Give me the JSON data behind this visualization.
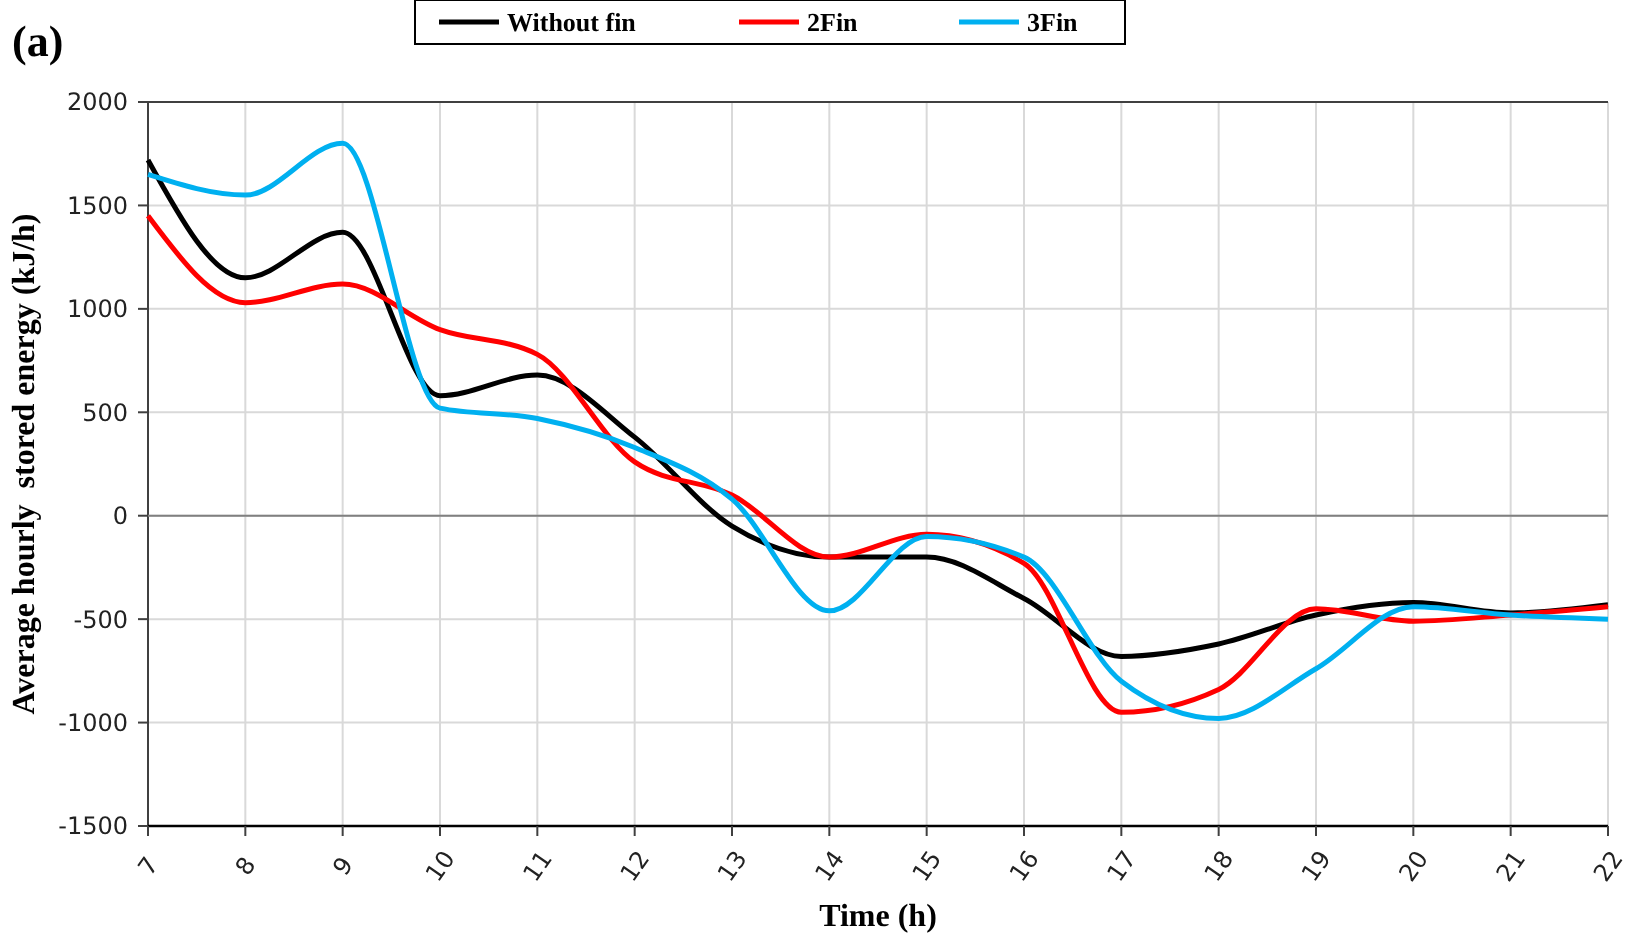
{
  "chart_data": {
    "type": "line",
    "title": "(a)",
    "xlabel": "Time (h)",
    "ylabel": "Average hourly  stored energy (kJ/h)",
    "x": [
      7,
      8,
      9,
      10,
      11,
      12,
      13,
      14,
      15,
      16,
      17,
      18,
      19,
      20,
      21,
      22
    ],
    "series": [
      {
        "name": "Without fin",
        "color": "#000000",
        "values": [
          1720,
          1150,
          1370,
          580,
          680,
          380,
          -50,
          -200,
          -200,
          -400,
          -680,
          -620,
          -480,
          -420,
          -470,
          -430
        ]
      },
      {
        "name": "2Fin",
        "color": "#ff0000",
        "values": [
          1450,
          1030,
          1120,
          900,
          780,
          260,
          100,
          -200,
          -90,
          -230,
          -950,
          -840,
          -450,
          -510,
          -480,
          -440
        ]
      },
      {
        "name": "3Fin",
        "color": "#00b0f0",
        "values": [
          1650,
          1550,
          1800,
          520,
          470,
          330,
          80,
          -460,
          -100,
          -200,
          -800,
          -980,
          -740,
          -440,
          -480,
          -500
        ]
      }
    ],
    "xlim": [
      7,
      22
    ],
    "xticks": [
      7,
      8,
      9,
      10,
      11,
      12,
      13,
      14,
      15,
      16,
      17,
      18,
      19,
      20,
      21,
      22
    ],
    "ylim": [
      -1500,
      2000
    ],
    "yticks": [
      -1500,
      -1000,
      -500,
      0,
      500,
      1000,
      1500,
      2000
    ],
    "grid": true,
    "legend": "top",
    "marker": "none",
    "line_style": "solid"
  }
}
